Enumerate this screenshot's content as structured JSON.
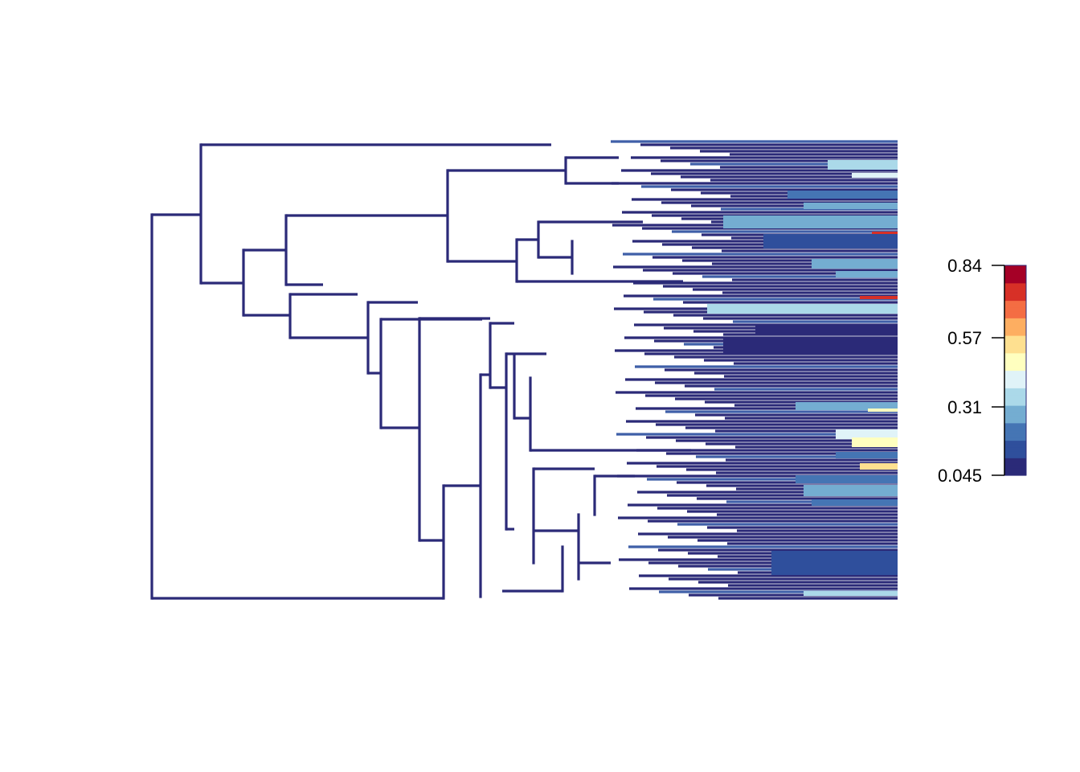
{
  "figure": {
    "type": "phylogenetic-tree-rate-map",
    "orientation": "rightwards",
    "branch_style": "rectangular",
    "palette": [
      "#2b2a78",
      "#2f4f9c",
      "#4575b4",
      "#74add1",
      "#abd9e9",
      "#e0f3f8",
      "#ffffbf",
      "#fee090",
      "#fdae61",
      "#f46d43",
      "#d73027",
      "#a50026"
    ]
  },
  "legend": {
    "type": "colorbar",
    "position": "right",
    "min": 0.045,
    "max": 0.84,
    "ticks": [
      {
        "value": 0.84,
        "label": "0.84"
      },
      {
        "value": 0.57,
        "label": "0.57"
      },
      {
        "value": 0.31,
        "label": "0.31"
      },
      {
        "value": 0.045,
        "label": "0.045"
      }
    ]
  }
}
